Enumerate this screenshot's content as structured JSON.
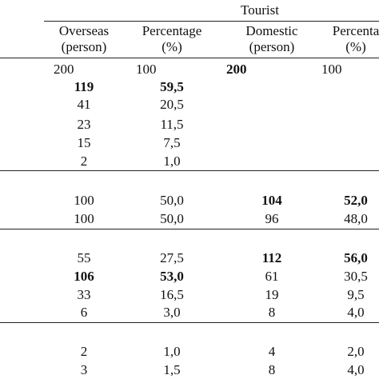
{
  "super_header": "Tourist",
  "columns": [
    {
      "line1": "Overseas",
      "line2": "(person)"
    },
    {
      "line1": "Percentage",
      "line2": "(%)"
    },
    {
      "line1": "Domestic",
      "line2": "(person)"
    },
    {
      "line1": "Percenta",
      "line2": "(%)"
    }
  ],
  "total_row": {
    "overseas": "200",
    "pct": "100",
    "domestic": "200",
    "dpct": "100"
  },
  "group1": [
    {
      "overseas": "119",
      "pct": "59,5",
      "domestic": "",
      "dpct": ""
    },
    {
      "overseas": "41",
      "pct": "20,5",
      "domestic": "",
      "dpct": ""
    },
    {
      "overseas": "23",
      "pct": "11,5",
      "domestic": "",
      "dpct": ""
    },
    {
      "overseas": "15",
      "pct": "7,5",
      "domestic": "",
      "dpct": ""
    },
    {
      "overseas": "2",
      "pct": "1,0",
      "domestic": "",
      "dpct": ""
    }
  ],
  "group2": [
    {
      "overseas": "100",
      "pct": "50,0",
      "domestic": "104",
      "dpct": "52,0"
    },
    {
      "overseas": "100",
      "pct": "50,0",
      "domestic": "96",
      "dpct": "48,0"
    }
  ],
  "group3": [
    {
      "overseas": "55",
      "pct": "27,5",
      "domestic": "112",
      "dpct": "56,0"
    },
    {
      "overseas": "106",
      "pct": "53,0",
      "domestic": "61",
      "dpct": "30,5"
    },
    {
      "overseas": "33",
      "pct": "16,5",
      "domestic": "19",
      "dpct": "9,5"
    },
    {
      "overseas": "6",
      "pct": "3,0",
      "domestic": "8",
      "dpct": "4,0"
    }
  ],
  "group4": [
    {
      "overseas": "2",
      "pct": "1,0",
      "domestic": "4",
      "dpct": "2,0"
    },
    {
      "overseas": "3",
      "pct": "1,5",
      "domestic": "8",
      "dpct": "4,0"
    }
  ]
}
